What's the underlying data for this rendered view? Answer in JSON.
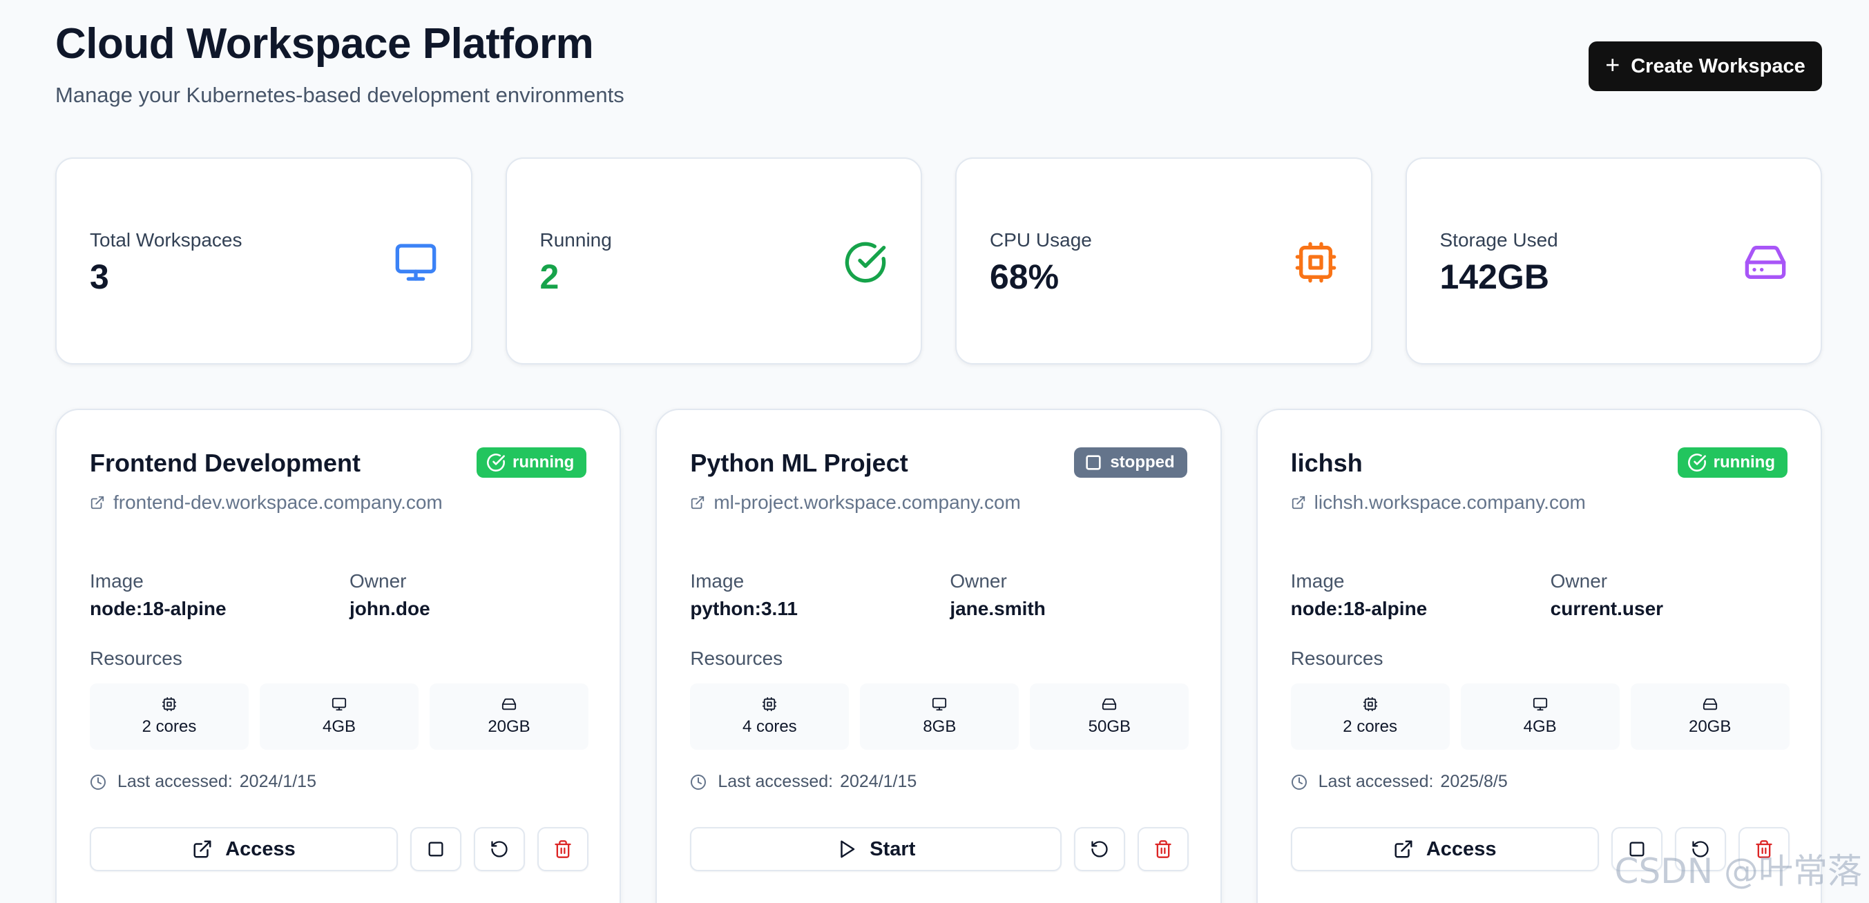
{
  "header": {
    "title": "Cloud Workspace Platform",
    "subtitle": "Manage your Kubernetes-based development environments",
    "create_button": "Create Workspace"
  },
  "stats": [
    {
      "label": "Total Workspaces",
      "value": "3",
      "icon": "monitor-icon",
      "color": "#3b82f6"
    },
    {
      "label": "Running",
      "value": "2",
      "icon": "check-circle-icon",
      "color": "#16a34a"
    },
    {
      "label": "CPU Usage",
      "value": "68%",
      "icon": "cpu-icon",
      "color": "#f97316"
    },
    {
      "label": "Storage Used",
      "value": "142GB",
      "icon": "hard-drive-icon",
      "color": "#a855f7"
    }
  ],
  "labels": {
    "image": "Image",
    "owner": "Owner",
    "resources": "Resources",
    "last_accessed": "Last accessed:"
  },
  "workspaces": [
    {
      "name": "Frontend Development",
      "status": "running",
      "url": "frontend-dev.workspace.company.com",
      "image": "node:18-alpine",
      "owner": "john.doe",
      "cpu": "2 cores",
      "memory": "4GB",
      "storage": "20GB",
      "last_accessed": "2024/1/15",
      "primary_action": "Access"
    },
    {
      "name": "Python ML Project",
      "status": "stopped",
      "url": "ml-project.workspace.company.com",
      "image": "python:3.11",
      "owner": "jane.smith",
      "cpu": "4 cores",
      "memory": "8GB",
      "storage": "50GB",
      "last_accessed": "2024/1/15",
      "primary_action": "Start"
    },
    {
      "name": "lichsh",
      "status": "running",
      "url": "lichsh.workspace.company.com",
      "image": "node:18-alpine",
      "owner": "current.user",
      "cpu": "2 cores",
      "memory": "4GB",
      "storage": "20GB",
      "last_accessed": "2025/8/5",
      "primary_action": "Access"
    }
  ],
  "watermark": "CSDN @叶常落",
  "colors": {
    "running": "#22c55e",
    "stopped": "#64748b",
    "delete": "#dc2626",
    "primary": "#111111"
  }
}
